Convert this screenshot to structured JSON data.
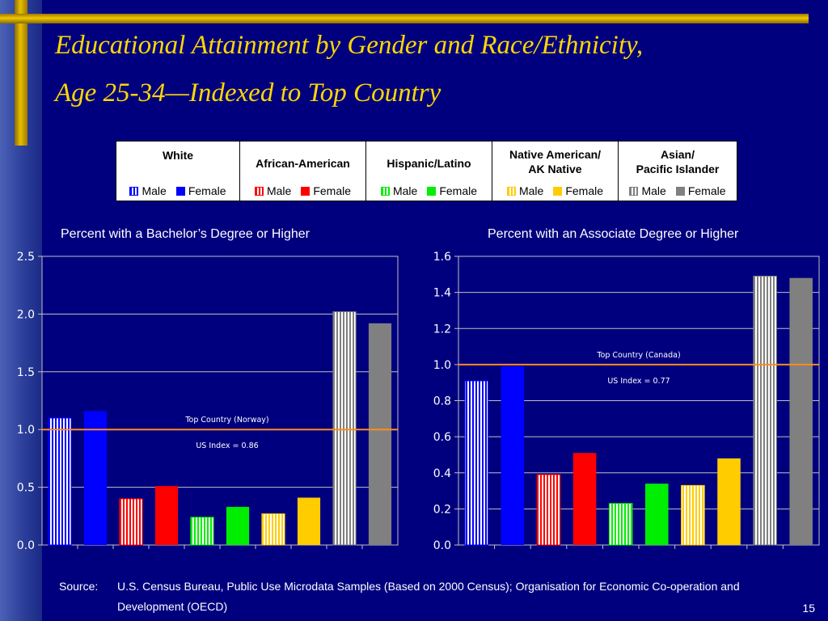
{
  "slide": {
    "title_line1": "Educational Attainment by Gender and Race/Ethnicity,",
    "title_line2": "Age 25-34—Indexed to Top Country",
    "source_label": "Source:",
    "source_text": "U.S. Census Bureau, Public Use Microdata Samples (Based on 2000 Census); Organisation for Economic Co-operation and Development (OECD)",
    "page_number": "15"
  },
  "legend": {
    "male_label": "Male",
    "female_label": "Female",
    "groups": [
      {
        "name": "White",
        "male_color": "#0000ff",
        "female_color": "#0000ff"
      },
      {
        "name": "African-American",
        "male_color": "#ff0000",
        "female_color": "#ff0000"
      },
      {
        "name": "Hispanic/Latino",
        "male_color": "#00ee00",
        "female_color": "#00ee00"
      },
      {
        "name": "Native American/\nAK Native",
        "male_color": "#ffcc00",
        "female_color": "#ffcc00"
      },
      {
        "name": "Asian/\nPacific Islander",
        "male_color": "#808080",
        "female_color": "#808080"
      }
    ]
  },
  "chart_data": [
    {
      "type": "bar",
      "title": "Percent with a Bachelor’s Degree or Higher",
      "categories": [
        "White Male",
        "White Female",
        "African-American Male",
        "African-American Female",
        "Hispanic/Latino Male",
        "Hispanic/Latino Female",
        "Native American/AK Native Male",
        "Native American/AK Native Female",
        "Asian/Pacific Islander Male",
        "Asian/Pacific Islander Female"
      ],
      "values": [
        1.1,
        1.16,
        0.4,
        0.51,
        0.24,
        0.33,
        0.27,
        0.41,
        2.02,
        1.92
      ],
      "colors": [
        "#0000ff",
        "#0000ff",
        "#ff0000",
        "#ff0000",
        "#00ee00",
        "#00ee00",
        "#ffcc00",
        "#ffcc00",
        "#808080",
        "#808080"
      ],
      "patterns": [
        "striped",
        "solid",
        "striped",
        "solid",
        "striped",
        "solid",
        "striped",
        "solid",
        "striped",
        "solid"
      ],
      "ylim": [
        0,
        2.5
      ],
      "yticks": [
        "0.0",
        "0.5",
        "1.0",
        "1.5",
        "2.0",
        "2.5"
      ],
      "ytick_values": [
        0,
        0.5,
        1.0,
        1.5,
        2.0,
        2.5
      ],
      "reference_line": {
        "value": 1.0,
        "color": "#ff8c1a",
        "label": "Top Country (Norway)"
      },
      "annotation": "US Index = 0.86",
      "grid": true
    },
    {
      "type": "bar",
      "title": "Percent with an Associate Degree or Higher",
      "categories": [
        "White Male",
        "White Female",
        "African-American Male",
        "African-American Female",
        "Hispanic/Latino Male",
        "Hispanic/Latino Female",
        "Native American/AK Native Male",
        "Native American/AK Native Female",
        "Asian/Pacific Islander Male",
        "Asian/Pacific Islander Female"
      ],
      "values": [
        0.91,
        0.99,
        0.39,
        0.51,
        0.23,
        0.34,
        0.33,
        0.48,
        1.49,
        1.48
      ],
      "colors": [
        "#0000ff",
        "#0000ff",
        "#ff0000",
        "#ff0000",
        "#00ee00",
        "#00ee00",
        "#ffcc00",
        "#ffcc00",
        "#808080",
        "#808080"
      ],
      "patterns": [
        "striped",
        "solid",
        "striped",
        "solid",
        "striped",
        "solid",
        "striped",
        "solid",
        "striped",
        "solid"
      ],
      "ylim": [
        0,
        1.6
      ],
      "yticks": [
        "0.0",
        "0.2",
        "0.4",
        "0.6",
        "0.8",
        "1.0",
        "1.2",
        "1.4",
        "1.6"
      ],
      "ytick_values": [
        0,
        0.2,
        0.4,
        0.6,
        0.8,
        1.0,
        1.2,
        1.4,
        1.6
      ],
      "reference_line": {
        "value": 1.0,
        "color": "#ff8c1a",
        "label": "Top Country (Canada)"
      },
      "annotation": "US Index = 0.77",
      "grid": true
    }
  ]
}
